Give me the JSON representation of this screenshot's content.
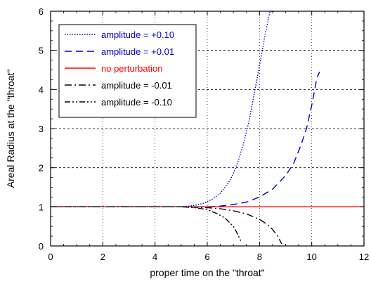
{
  "chart_data": {
    "type": "line",
    "title": "",
    "xlabel": "proper time  on the \"throat\"",
    "ylabel": "Areal Radius  at the \"throat\"",
    "xlim": [
      0,
      12
    ],
    "ylim": [
      0,
      6
    ],
    "xticks": [
      "0",
      "2",
      "4",
      "6",
      "8",
      "10",
      "12"
    ],
    "yticks": [
      "0",
      "1",
      "2",
      "3",
      "4",
      "5",
      "6"
    ],
    "grid": "horizontal dashed at major y ticks, vertical dotted at major x ticks",
    "legend_position": "top-left",
    "series": [
      {
        "name": "amplitude = +0.10",
        "color": "#0000cc",
        "dash": "dotted",
        "x": [
          0,
          1,
          2,
          3,
          4,
          4.5,
          5,
          5.3,
          5.6,
          5.9,
          6.2,
          6.5,
          6.8,
          7.0,
          7.2,
          7.4,
          7.6,
          7.8,
          8.0,
          8.2,
          8.4,
          8.5,
          8.6
        ],
        "y": [
          1.0,
          1.0,
          1.0,
          1.0,
          1.0,
          1.0,
          1.0,
          1.02,
          1.05,
          1.1,
          1.2,
          1.35,
          1.6,
          1.85,
          2.2,
          2.65,
          3.2,
          3.9,
          4.6,
          5.35,
          6.0,
          6.0,
          6.0
        ]
      },
      {
        "name": "amplitude = +0.01",
        "color": "#0000cc",
        "dash": "long-dash",
        "x": [
          0,
          2,
          4,
          5,
          6,
          6.5,
          7,
          7.5,
          8,
          8.5,
          9,
          9.3,
          9.6,
          9.8,
          10.0,
          10.1,
          10.2,
          10.3
        ],
        "y": [
          1.0,
          1.0,
          1.0,
          1.0,
          1.0,
          1.02,
          1.06,
          1.12,
          1.25,
          1.45,
          1.8,
          2.1,
          2.6,
          3.0,
          3.6,
          3.95,
          4.3,
          4.45
        ]
      },
      {
        "name": "no perturbation",
        "color": "#ff0000",
        "dash": "solid",
        "x": [
          0,
          12
        ],
        "y": [
          1.0,
          1.0
        ]
      },
      {
        "name": "amplitude = -0.01",
        "color": "#000000",
        "dash": "dash-dot",
        "x": [
          0,
          2,
          4,
          5,
          6,
          6.5,
          7,
          7.5,
          8,
          8.3,
          8.5,
          8.7,
          8.85
        ],
        "y": [
          1.0,
          1.0,
          1.0,
          1.0,
          0.98,
          0.95,
          0.9,
          0.82,
          0.68,
          0.55,
          0.42,
          0.25,
          0.05
        ]
      },
      {
        "name": "amplitude = -0.10",
        "color": "#000000",
        "dash": "dash-dot-dot",
        "x": [
          0,
          2,
          4,
          5,
          5.5,
          6,
          6.4,
          6.7,
          7.0,
          7.1,
          7.2,
          7.3
        ],
        "y": [
          1.0,
          1.0,
          1.0,
          1.0,
          0.98,
          0.93,
          0.82,
          0.7,
          0.5,
          0.38,
          0.25,
          0.1
        ]
      }
    ]
  }
}
